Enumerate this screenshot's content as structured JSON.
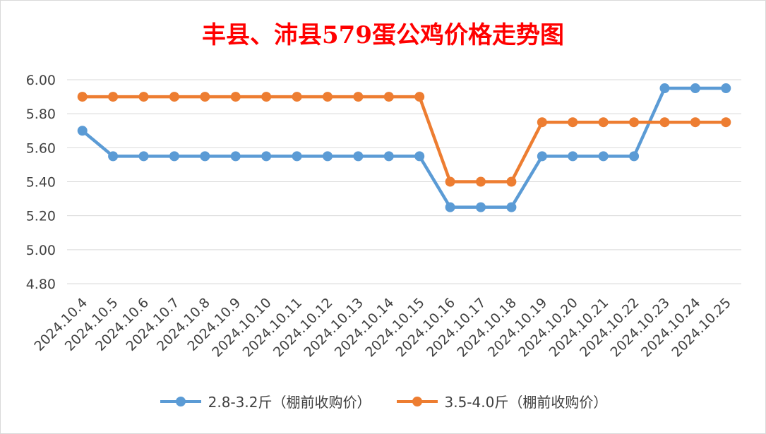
{
  "chart_data": {
    "type": "line",
    "title": "丰县、沛县579蛋公鸡价格走势图",
    "categories": [
      "2024.10.4",
      "2024.10.5",
      "2024.10.6",
      "2024.10.7",
      "2024.10.8",
      "2024.10.9",
      "2024.10.10",
      "2024.10.11",
      "2024.10.12",
      "2024.10.13",
      "2024.10.14",
      "2024.10.15",
      "2024.10.16",
      "2024.10.17",
      "2024.10.18",
      "2024.10.19",
      "2024.10.20",
      "2024.10.21",
      "2024.10.22",
      "2024.10.23",
      "2024.10.24",
      "2024.10.25"
    ],
    "series": [
      {
        "name": "2.8-3.2斤（棚前收购价）",
        "color": "#5b9bd5",
        "values": [
          5.7,
          5.55,
          5.55,
          5.55,
          5.55,
          5.55,
          5.55,
          5.55,
          5.55,
          5.55,
          5.55,
          5.55,
          5.25,
          5.25,
          5.25,
          5.55,
          5.55,
          5.55,
          5.55,
          5.95,
          5.95,
          5.95
        ]
      },
      {
        "name": "3.5-4.0斤（棚前收购价）",
        "color": "#ed7d31",
        "values": [
          5.9,
          5.9,
          5.9,
          5.9,
          5.9,
          5.9,
          5.9,
          5.9,
          5.9,
          5.9,
          5.9,
          5.9,
          5.4,
          5.4,
          5.4,
          5.75,
          5.75,
          5.75,
          5.75,
          5.75,
          5.75,
          5.75
        ]
      }
    ],
    "ylim": [
      4.8,
      6.0
    ],
    "yticks": [
      "4.80",
      "5.00",
      "5.20",
      "5.40",
      "5.60",
      "5.80",
      "6.00"
    ],
    "grid": true,
    "legend_position": "bottom"
  }
}
